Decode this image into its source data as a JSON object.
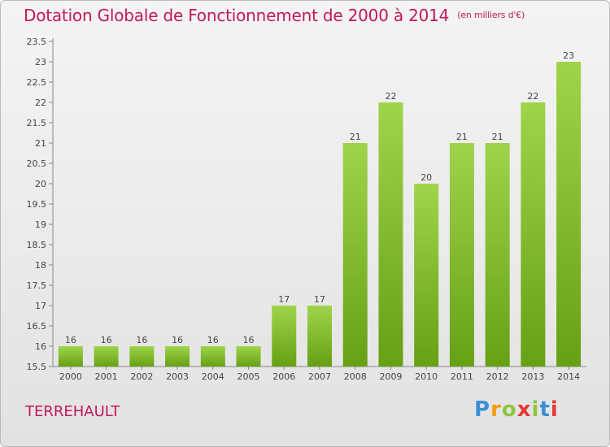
{
  "title": "Dotation Globale de Fonctionnement de 2000 à 2014",
  "subtitle": "(en milliers d'€)",
  "commune": "TERREHAULT",
  "logo": {
    "letters": [
      "P",
      "r",
      "o",
      "x",
      "i",
      "t",
      "i"
    ],
    "colors": [
      "#3b8fd4",
      "#f39c12",
      "#8ec63f",
      "#e53935",
      "#8ec63f",
      "#3b8fd4",
      "#e53935"
    ]
  },
  "colors": {
    "bar_light": "#9fd44a",
    "bar_dark": "#66a014",
    "title": "#c2185b"
  },
  "chart_data": {
    "type": "bar",
    "categories": [
      "2000",
      "2001",
      "2002",
      "2003",
      "2004",
      "2005",
      "2006",
      "2007",
      "2008",
      "2009",
      "2010",
      "2011",
      "2012",
      "2013",
      "2014"
    ],
    "values": [
      16,
      16,
      16,
      16,
      16,
      16,
      17,
      17,
      21,
      22,
      20,
      21,
      21,
      22,
      23
    ],
    "data_labels": [
      "16",
      "16",
      "16",
      "16",
      "16",
      "16",
      "17",
      "17",
      "21",
      "22",
      "20",
      "21",
      "21",
      "22",
      "23"
    ],
    "ylim": [
      15.5,
      23.5
    ],
    "yticks": [
      "15.5",
      "16",
      "16.5",
      "17",
      "17.5",
      "18",
      "18.5",
      "19",
      "19.5",
      "20",
      "20.5",
      "21",
      "21.5",
      "22",
      "22.5",
      "23",
      "23.5"
    ],
    "grid": false
  }
}
